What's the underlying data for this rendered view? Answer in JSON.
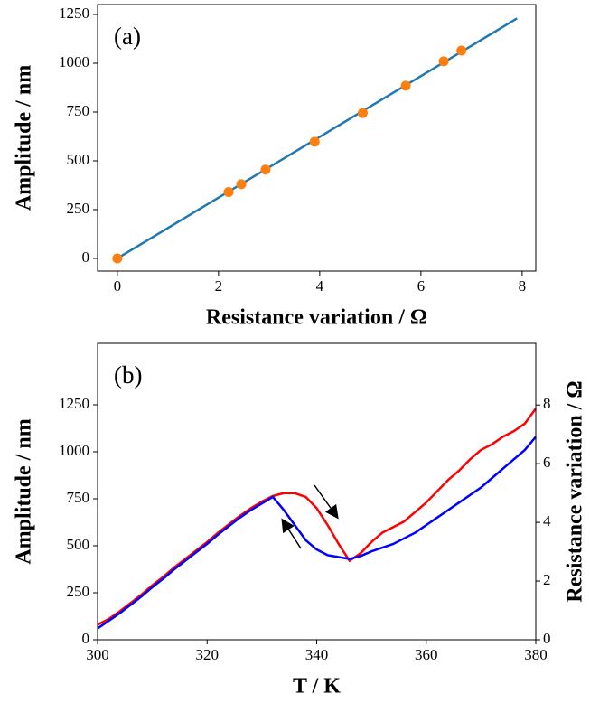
{
  "chart_data": [
    {
      "type": "scatter",
      "annotation": "(a)",
      "xlabel": "Resistance variation / Ω",
      "ylabel": "Amplitude / nm",
      "xlim": [
        -0.39,
        8.27
      ],
      "ylim": [
        -65,
        1301
      ],
      "xticks": [
        0,
        2,
        4,
        6,
        8
      ],
      "yticks": [
        0,
        250,
        500,
        750,
        1000,
        1250
      ],
      "series": [
        {
          "style": "line",
          "color": "#1f77b4",
          "x": [
            0,
            7.9
          ],
          "values": [
            0,
            1230
          ]
        },
        {
          "style": "points",
          "color": "#ff7f0e",
          "x": [
            0,
            2.2,
            2.45,
            2.93,
            3.9,
            4.85,
            5.7,
            6.45,
            6.8
          ],
          "values": [
            0,
            340,
            380,
            455,
            598,
            745,
            885,
            1010,
            1065
          ]
        }
      ]
    },
    {
      "type": "line",
      "annotation": "(b)",
      "xlabel": "T / K",
      "ylabel": "Amplitude / nm",
      "y2label": "Resistance variation / Ω",
      "xlim": [
        300,
        380
      ],
      "ylim": [
        0,
        1577
      ],
      "y2lim": [
        0,
        10.1
      ],
      "xticks": [
        300,
        320,
        340,
        360,
        380
      ],
      "yticks": [
        0,
        250,
        500,
        750,
        1000,
        1250
      ],
      "y2ticks": [
        0,
        2,
        4,
        6,
        8
      ],
      "x": [
        300,
        302,
        304,
        306,
        308,
        310,
        312,
        314,
        316,
        318,
        320,
        322,
        324,
        326,
        328,
        330,
        332,
        334,
        336,
        338,
        340,
        342,
        344,
        346,
        348,
        350,
        352,
        354,
        356,
        358,
        360,
        362,
        364,
        366,
        368,
        370,
        372,
        374,
        376,
        378,
        380
      ],
      "series": [
        {
          "color": "#ff0000",
          "values": [
            80,
            110,
            150,
            195,
            240,
            290,
            335,
            385,
            430,
            475,
            520,
            570,
            615,
            660,
            700,
            735,
            765,
            780,
            780,
            760,
            700,
            610,
            510,
            420,
            460,
            520,
            570,
            600,
            630,
            680,
            730,
            790,
            850,
            900,
            960,
            1010,
            1040,
            1080,
            1110,
            1150,
            1230
          ]
        },
        {
          "color": "#0000ff",
          "values": [
            60,
            100,
            140,
            185,
            230,
            280,
            325,
            375,
            420,
            465,
            510,
            560,
            605,
            650,
            690,
            725,
            760,
            690,
            610,
            530,
            480,
            450,
            440,
            430,
            445,
            470,
            490,
            510,
            540,
            570,
            610,
            650,
            690,
            730,
            770,
            810,
            860,
            910,
            960,
            1010,
            1080
          ]
        }
      ]
    }
  ]
}
